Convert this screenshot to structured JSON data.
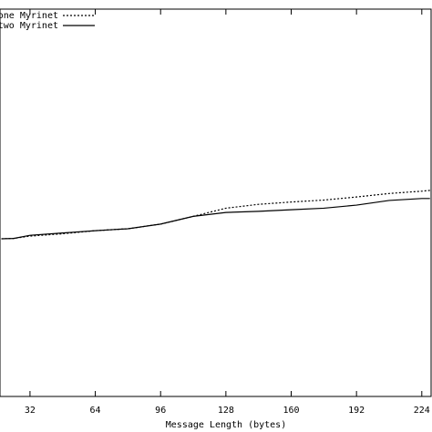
{
  "chart_data": {
    "type": "line",
    "x_label": "Message Length (bytes)",
    "x": [
      18,
      24,
      32,
      48,
      64,
      80,
      96,
      112,
      128,
      144,
      160,
      176,
      192,
      208,
      224,
      228
    ],
    "series": [
      {
        "name": "one Myrinet",
        "color": "#000000",
        "dash": "2,2",
        "values": [
          40.7,
          40.8,
          41.4,
          42.0,
          42.8,
          43.3,
          44.5,
          46.5,
          48.6,
          49.6,
          50.2,
          50.7,
          51.5,
          52.4,
          53.0,
          53.2
        ]
      },
      {
        "name": "two Myrinet",
        "color": "#000000",
        "dash": "none",
        "values": [
          40.7,
          40.8,
          41.6,
          42.2,
          42.8,
          43.3,
          44.5,
          46.5,
          47.5,
          47.8,
          48.2,
          48.6,
          49.4,
          50.6,
          51.1,
          51.1
        ]
      }
    ],
    "xlim": [
      17.3,
      229
    ],
    "ylim": [
      0,
      100
    ],
    "xticks": [
      32,
      64,
      96,
      128,
      160,
      192,
      224
    ]
  }
}
